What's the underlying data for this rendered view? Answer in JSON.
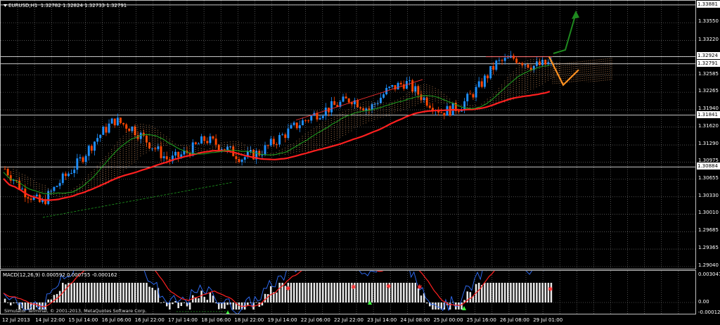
{
  "window": {
    "symbol_title": "EURUSD,H1",
    "ohlc": "1.32782 1.32824 1.32733 1.32791"
  },
  "price_axis": {
    "labels": [
      "1.33881",
      "1.33550",
      "1.33220",
      "1.32924",
      "1.32791",
      "1.32585",
      "1.32265",
      "1.31940",
      "1.31841",
      "1.31620",
      "1.31290",
      "1.30975",
      "1.30884",
      "1.30655",
      "1.30330",
      "1.30010",
      "1.29685",
      "1.29365",
      "1.29040"
    ],
    "highlighted": [
      "1.33881",
      "1.32924",
      "1.32791",
      "1.31841",
      "1.30884"
    ]
  },
  "macd_axis": {
    "top": "0.003047",
    "zero": "0.00",
    "bottom": "-0.000127"
  },
  "macd": {
    "title": "MACD(12,26,9) 0.000592 0.000755 -0.000162"
  },
  "time_axis": {
    "labels": [
      "12 Jul 2013",
      "14 Jul 22:00",
      "15 Jul 14:00",
      "16 Jul 06:00",
      "16 Jul 22:00",
      "17 Jul 14:00",
      "18 Jul 06:00",
      "18 Jul 22:00",
      "19 Jul 14:00",
      "22 Jul 06:00",
      "22 Jul 22:00",
      "23 Jul 14:00",
      "24 Jul 08:00",
      "25 Jul 00:00",
      "25 Jul 16:00",
      "26 Jul 08:00",
      "29 Jul 01:00"
    ]
  },
  "footer": {
    "copyright": "Simulator Terminal, © 2001-2013, MetaQuotes Software Corp."
  },
  "colors": {
    "background": "#000000",
    "grid": "#ffffff",
    "bull_candle": "#1e90ff",
    "bear_candle": "#ff4500",
    "ma_slow": "#ff2020",
    "ma_fast": "#1f9b1f",
    "cloud": "#ffb070",
    "forecast": "#ff9020",
    "arrow": "#1f8a1f"
  },
  "chart_data": {
    "type": "candlestick",
    "symbol": "EURUSD",
    "timeframe": "H1",
    "ylim": [
      1.2904,
      1.3388
    ],
    "x_labels": [
      "12 Jul 2013",
      "14 Jul 22:00",
      "15 Jul 14:00",
      "16 Jul 06:00",
      "16 Jul 22:00",
      "17 Jul 14:00",
      "18 Jul 06:00",
      "18 Jul 22:00",
      "19 Jul 14:00",
      "22 Jul 06:00",
      "22 Jul 22:00",
      "23 Jul 14:00",
      "24 Jul 08:00",
      "25 Jul 00:00",
      "25 Jul 16:00",
      "26 Jul 08:00",
      "29 Jul 01:00"
    ],
    "close_path": [
      1.3085,
      1.3045,
      1.302,
      1.306,
      1.3095,
      1.314,
      1.3175,
      1.316,
      1.313,
      1.31,
      1.3115,
      1.314,
      1.3125,
      1.3105,
      1.3115,
      1.314,
      1.3165,
      1.3185,
      1.32,
      1.3215,
      1.3195,
      1.323,
      1.3245,
      1.3215,
      1.319,
      1.32,
      1.3235,
      1.328,
      1.329,
      1.3275,
      1.328
    ],
    "horizontal_levels": [
      1.33881,
      1.32924,
      1.32791,
      1.31841,
      1.30884
    ]
  }
}
